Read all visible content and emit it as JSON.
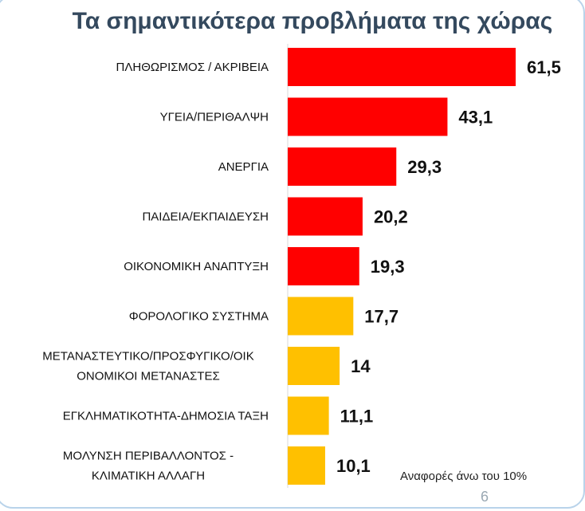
{
  "chart_data": {
    "type": "bar",
    "orientation": "horizontal",
    "title": "Τα σημαντικότερα προβλήματα της χώρας",
    "categories": [
      "ΠΛΗΘΩΡΙΣΜΟΣ / ΑΚΡΙΒΕΙΑ",
      "ΥΓΕΙΑ/ΠΕΡΙΘΑΛΨΗ",
      "ΑΝΕΡΓΙΑ",
      "ΠΑΙΔΕΙΑ/ΕΚΠΑΙΔΕΥΣΗ",
      "ΟΙΚΟΝΟΜΙΚΗ ΑΝΑΠΤΥΞΗ",
      "ΦΟΡΟΛΟΓΙΚΟ ΣΥΣΤΗΜΑ",
      "ΜΕΤΑΝΑΣΤΕΥΤΙΚΟ/ΠΡΟΣΦΥΓΙΚΟ/ΟΙΚ ΟΝΟΜΙΚΟΙ ΜΕΤΑΝΑΣΤΕΣ",
      "ΕΓΚΛΗΜΑΤΙΚΟΤΗΤΑ-ΔΗΜΟΣΙΑ ΤΑΞΗ",
      "ΜΟΛΥΝΣΗ  ΠΕΡΙΒΑΛΛΟΝΤΟΣ - ΚΛΙΜΑΤΙΚΗ ΑΛΛΑΓΗ"
    ],
    "category_lines": [
      [
        "ΠΛΗΘΩΡΙΣΜΟΣ / ΑΚΡΙΒΕΙΑ"
      ],
      [
        "ΥΓΕΙΑ/ΠΕΡΙΘΑΛΨΗ"
      ],
      [
        "ΑΝΕΡΓΙΑ"
      ],
      [
        "ΠΑΙΔΕΙΑ/ΕΚΠΑΙΔΕΥΣΗ"
      ],
      [
        "ΟΙΚΟΝΟΜΙΚΗ ΑΝΑΠΤΥΞΗ"
      ],
      [
        "ΦΟΡΟΛΟΓΙΚΟ ΣΥΣΤΗΜΑ"
      ],
      [
        "ΜΕΤΑΝΑΣΤΕΥΤΙΚΟ/ΠΡΟΣΦΥΓΙΚΟ/ΟΙΚ",
        "ΟΝΟΜΙΚΟΙ ΜΕΤΑΝΑΣΤΕΣ"
      ],
      [
        "ΕΓΚΛΗΜΑΤΙΚΟΤΗΤΑ-ΔΗΜΟΣΙΑ ΤΑΞΗ"
      ],
      [
        "ΜΟΛΥΝΣΗ  ΠΕΡΙΒΑΛΛΟΝΤΟΣ -",
        "ΚΛΙΜΑΤΙΚΗ ΑΛΛΑΓΗ"
      ]
    ],
    "values": [
      61.5,
      43.1,
      29.3,
      20.2,
      19.3,
      17.7,
      14,
      11.1,
      10.1
    ],
    "value_labels": [
      "61,5",
      "43,1",
      "29,3",
      "20,2",
      "19,3",
      "17,7",
      "14",
      "11,1",
      "10,1"
    ],
    "bar_colors": [
      "#ff0000",
      "#ff0000",
      "#ff0000",
      "#ff0000",
      "#ff0000",
      "#ffc000",
      "#ffc000",
      "#ffc000",
      "#ffc000"
    ],
    "xlim": [
      0,
      65
    ],
    "grid": false
  },
  "note": "Αναφορές άνω του 10%",
  "page_number": "6"
}
